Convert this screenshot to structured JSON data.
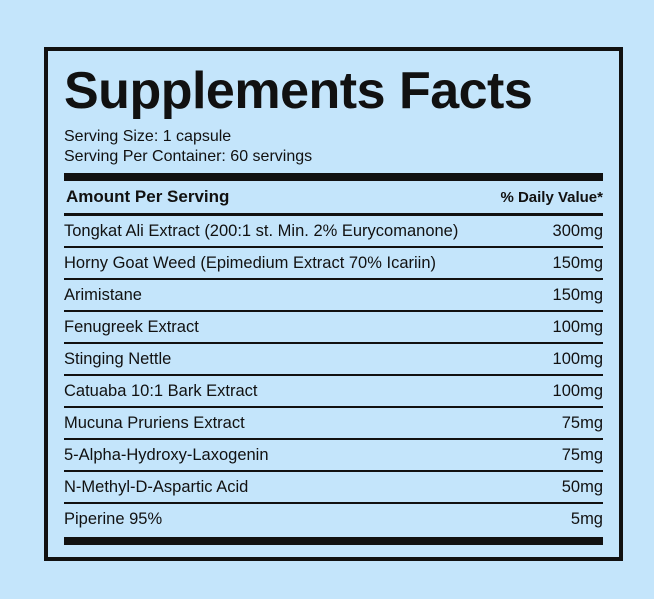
{
  "label": {
    "title": "Supplements Facts",
    "serving_size": "Serving Size: 1 capsule",
    "serving_per_container": "Serving Per Container: 60 servings",
    "amount_header": "Amount Per Serving",
    "daily_value_header": "% Daily Value*",
    "ingredients": [
      {
        "name": "Tongkat Ali Extract (200:1 st. Min. 2% Eurycomanone)",
        "amount": "300mg"
      },
      {
        "name": "Horny Goat Weed (Epimedium Extract 70% Icariin)",
        "amount": "150mg"
      },
      {
        "name": "Arimistane",
        "amount": "150mg"
      },
      {
        "name": "Fenugreek Extract",
        "amount": "100mg"
      },
      {
        "name": "Stinging Nettle",
        "amount": "100mg"
      },
      {
        "name": "Catuaba 10:1 Bark Extract",
        "amount": "100mg"
      },
      {
        "name": "Mucuna Pruriens Extract",
        "amount": "75mg"
      },
      {
        "name": "5-Alpha-Hydroxy-Laxogenin",
        "amount": "75mg"
      },
      {
        "name": "N-Methyl-D-Aspartic Acid",
        "amount": "50mg"
      },
      {
        "name": "Piperine 95%",
        "amount": "5mg"
      }
    ]
  },
  "colors": {
    "background": "#c4e5fb",
    "ink": "#111111"
  }
}
